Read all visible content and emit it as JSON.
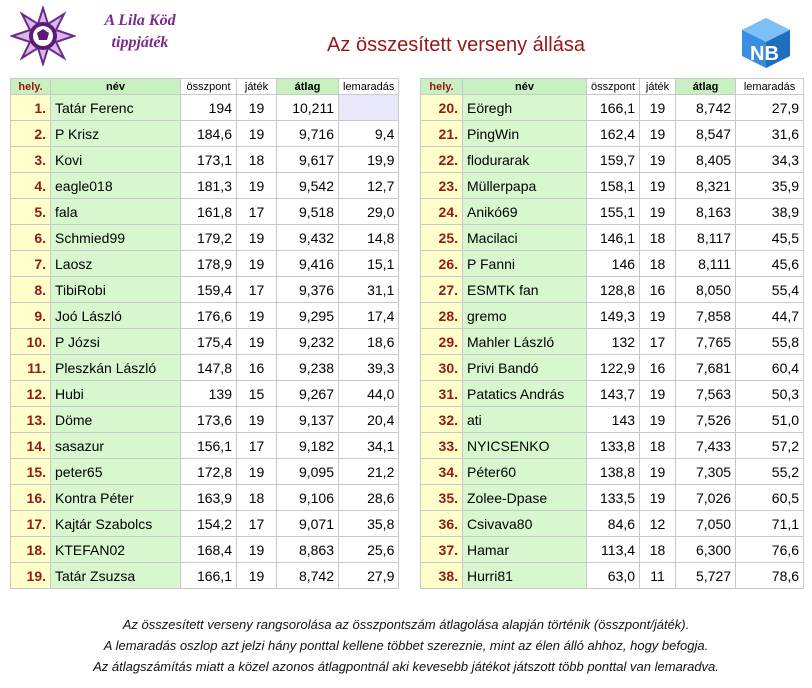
{
  "header": {
    "brand_line1": "A Lila Köd",
    "brand_line2": "tippjáték",
    "title": "Az összesített verseny állása",
    "logo_letters": "NB"
  },
  "columns": {
    "rank": "hely.",
    "name": "név",
    "points": "összpont",
    "games": "játék",
    "avg": "átlag",
    "behind": "lemaradás"
  },
  "left_rows": [
    {
      "rank": "1.",
      "name": "Tatár Ferenc",
      "points": "194",
      "games": "19",
      "avg": "10,211",
      "behind": ""
    },
    {
      "rank": "2.",
      "name": "P Krisz",
      "points": "184,6",
      "games": "19",
      "avg": "9,716",
      "behind": "9,4"
    },
    {
      "rank": "3.",
      "name": "Kovi",
      "points": "173,1",
      "games": "18",
      "avg": "9,617",
      "behind": "19,9"
    },
    {
      "rank": "4.",
      "name": "eagle018",
      "points": "181,3",
      "games": "19",
      "avg": "9,542",
      "behind": "12,7"
    },
    {
      "rank": "5.",
      "name": "fala",
      "points": "161,8",
      "games": "17",
      "avg": "9,518",
      "behind": "29,0"
    },
    {
      "rank": "6.",
      "name": "Schmied99",
      "points": "179,2",
      "games": "19",
      "avg": "9,432",
      "behind": "14,8"
    },
    {
      "rank": "7.",
      "name": "Laosz",
      "points": "178,9",
      "games": "19",
      "avg": "9,416",
      "behind": "15,1"
    },
    {
      "rank": "8.",
      "name": "TibiRobi",
      "points": "159,4",
      "games": "17",
      "avg": "9,376",
      "behind": "31,1"
    },
    {
      "rank": "9.",
      "name": "Joó László",
      "points": "176,6",
      "games": "19",
      "avg": "9,295",
      "behind": "17,4"
    },
    {
      "rank": "10.",
      "name": "P Józsi",
      "points": "175,4",
      "games": "19",
      "avg": "9,232",
      "behind": "18,6"
    },
    {
      "rank": "11.",
      "name": "Pleszkán László",
      "points": "147,8",
      "games": "16",
      "avg": "9,238",
      "behind": "39,3"
    },
    {
      "rank": "12.",
      "name": "Hubi",
      "points": "139",
      "games": "15",
      "avg": "9,267",
      "behind": "44,0"
    },
    {
      "rank": "13.",
      "name": "Döme",
      "points": "173,6",
      "games": "19",
      "avg": "9,137",
      "behind": "20,4"
    },
    {
      "rank": "14.",
      "name": "sasazur",
      "points": "156,1",
      "games": "17",
      "avg": "9,182",
      "behind": "34,1"
    },
    {
      "rank": "15.",
      "name": "peter65",
      "points": "172,8",
      "games": "19",
      "avg": "9,095",
      "behind": "21,2"
    },
    {
      "rank": "16.",
      "name": "Kontra Péter",
      "points": "163,9",
      "games": "18",
      "avg": "9,106",
      "behind": "28,6"
    },
    {
      "rank": "17.",
      "name": "Kajtár Szabolcs",
      "points": "154,2",
      "games": "17",
      "avg": "9,071",
      "behind": "35,8"
    },
    {
      "rank": "18.",
      "name": "KTEFAN02",
      "points": "168,4",
      "games": "19",
      "avg": "8,863",
      "behind": "25,6"
    },
    {
      "rank": "19.",
      "name": "Tatár Zsuzsa",
      "points": "166,1",
      "games": "19",
      "avg": "8,742",
      "behind": "27,9"
    }
  ],
  "right_rows": [
    {
      "rank": "20.",
      "name": "Eöregh",
      "points": "166,1",
      "games": "19",
      "avg": "8,742",
      "behind": "27,9"
    },
    {
      "rank": "21.",
      "name": "PingWin",
      "points": "162,4",
      "games": "19",
      "avg": "8,547",
      "behind": "31,6"
    },
    {
      "rank": "22.",
      "name": "flodurarak",
      "points": "159,7",
      "games": "19",
      "avg": "8,405",
      "behind": "34,3"
    },
    {
      "rank": "23.",
      "name": "Müllerpapa",
      "points": "158,1",
      "games": "19",
      "avg": "8,321",
      "behind": "35,9"
    },
    {
      "rank": "24.",
      "name": "Anikó69",
      "points": "155,1",
      "games": "19",
      "avg": "8,163",
      "behind": "38,9"
    },
    {
      "rank": "25.",
      "name": "Macilaci",
      "points": "146,1",
      "games": "18",
      "avg": "8,117",
      "behind": "45,5"
    },
    {
      "rank": "26.",
      "name": "P Fanni",
      "points": "146",
      "games": "18",
      "avg": "8,111",
      "behind": "45,6"
    },
    {
      "rank": "27.",
      "name": "ESMTK fan",
      "points": "128,8",
      "games": "16",
      "avg": "8,050",
      "behind": "55,4"
    },
    {
      "rank": "28.",
      "name": "gremo",
      "points": "149,3",
      "games": "19",
      "avg": "7,858",
      "behind": "44,7"
    },
    {
      "rank": "29.",
      "name": "Mahler László",
      "points": "132",
      "games": "17",
      "avg": "7,765",
      "behind": "55,8"
    },
    {
      "rank": "30.",
      "name": "Privi Bandó",
      "points": "122,9",
      "games": "16",
      "avg": "7,681",
      "behind": "60,4"
    },
    {
      "rank": "31.",
      "name": "Patatics András",
      "points": "143,7",
      "games": "19",
      "avg": "7,563",
      "behind": "50,3"
    },
    {
      "rank": "32.",
      "name": "ati",
      "points": "143",
      "games": "19",
      "avg": "7,526",
      "behind": "51,0"
    },
    {
      "rank": "33.",
      "name": "NYICSENKO",
      "points": "133,8",
      "games": "18",
      "avg": "7,433",
      "behind": "57,2"
    },
    {
      "rank": "34.",
      "name": "Péter60",
      "points": "138,8",
      "games": "19",
      "avg": "7,305",
      "behind": "55,2"
    },
    {
      "rank": "35.",
      "name": "Zolee-Dpase",
      "points": "133,5",
      "games": "19",
      "avg": "7,026",
      "behind": "60,5"
    },
    {
      "rank": "36.",
      "name": "Csivava80",
      "points": "84,6",
      "games": "12",
      "avg": "7,050",
      "behind": "71,1"
    },
    {
      "rank": "37.",
      "name": "Hamar",
      "points": "113,4",
      "games": "18",
      "avg": "6,300",
      "behind": "76,6"
    },
    {
      "rank": "38.",
      "name": "Hurri81",
      "points": "63,0",
      "games": "11",
      "avg": "5,727",
      "behind": "78,6"
    }
  ],
  "footnotes": [
    "Az összesített verseny rangsorolása az összpontszám átlagolása alapján történik (összpont/játék).",
    "A  lemaradás oszlop azt jelzi hány ponttal kellene többet szereznie, mint az élen álló ahhoz, hogy befogja.",
    "Az átlagszámítás miatt a közel azonos átlagpontnál aki kevesebb játékot játszott több ponttal van lemaradva."
  ],
  "colors": {
    "title": "#9a1515",
    "rank_bg": "#ffffcc",
    "name_bg": "#d7f7cf",
    "brand": "#7a2a8a"
  }
}
